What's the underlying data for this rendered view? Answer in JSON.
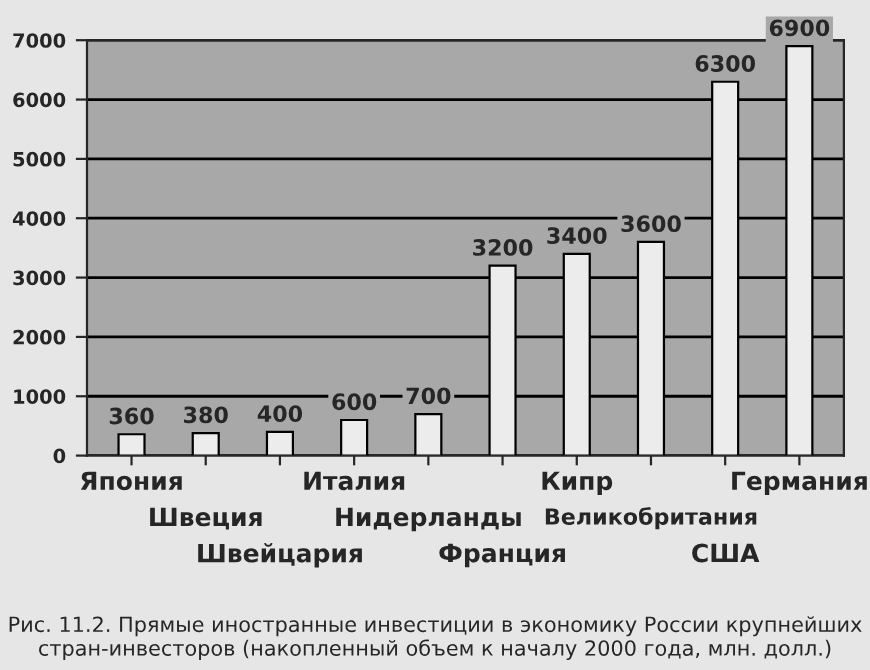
{
  "chart_data": {
    "type": "bar",
    "categories": [
      "Япония",
      "Швеция",
      "Швейцария",
      "Италия",
      "Нидерланды",
      "Франция",
      "Кипр",
      "Великобритания",
      "США",
      "Германия"
    ],
    "values": [
      360,
      380,
      400,
      600,
      700,
      3200,
      3400,
      3600,
      6300,
      6900
    ],
    "color": "#ececec",
    "ylim": [
      0,
      7000
    ],
    "yticks": [
      0,
      1000,
      2000,
      3000,
      4000,
      5000,
      6000,
      7000
    ],
    "grid": "y",
    "data_labels": true,
    "annotations": [
      "Рис. 11.2. Прямые иностранные инвестиции в экономику России крупнейших стран-инвесторов (накопленный объем к началу 2000 года, млн. долл.)"
    ]
  }
}
